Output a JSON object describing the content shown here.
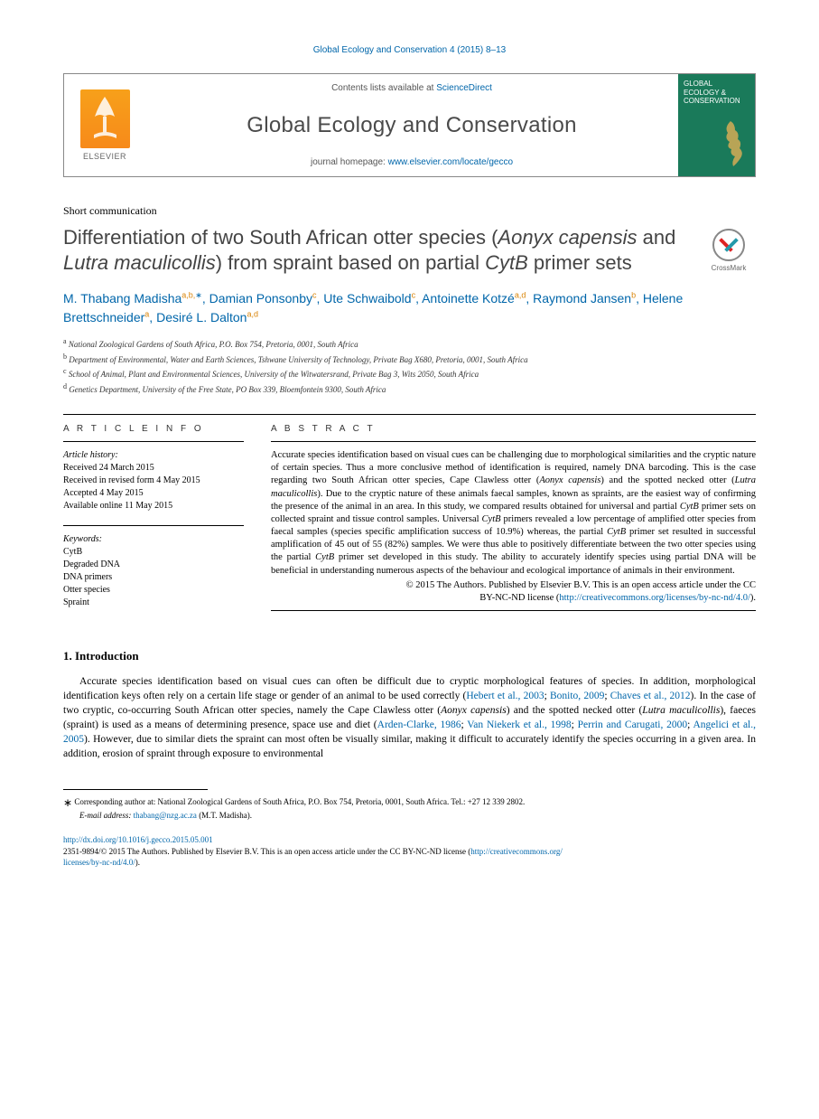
{
  "running_head": "Global Ecology and Conservation 4 (2015) 8–13",
  "masthead": {
    "contents_prefix": "Contents lists available at ",
    "contents_link": "ScienceDirect",
    "journal_name": "Global Ecology and Conservation",
    "homepage_prefix": "journal homepage: ",
    "homepage_link": "www.elsevier.com/locate/gecco",
    "elsevier_word": "ELSEVIER",
    "cover_title": "GLOBAL ECOLOGY & CONSERVATION"
  },
  "article_type": "Short communication",
  "title_parts": {
    "p1": "Differentiation of two South African otter species (",
    "i1": "Aonyx capensis",
    "p2": " and ",
    "i2": "Lutra maculicollis",
    "p3": ") from spraint based on partial ",
    "i3": "CytB",
    "p4": " primer sets"
  },
  "crossmark_label": "CrossMark",
  "authors": [
    {
      "name": "M. Thabang Madisha",
      "sup": "a,b,",
      "star": "∗"
    },
    {
      "name": "Damian Ponsonby",
      "sup": "c"
    },
    {
      "name": "Ute Schwaibold",
      "sup": "c"
    },
    {
      "name": "Antoinette Kotzé",
      "sup": "a,d"
    },
    {
      "name": "Raymond Jansen",
      "sup": "b"
    },
    {
      "name": "Helene Brettschneider",
      "sup": "a"
    },
    {
      "name": "Desiré L. Dalton",
      "sup": "a,d"
    }
  ],
  "affiliations": [
    {
      "key": "a",
      "text": "National Zoological Gardens of South Africa, P.O. Box 754, Pretoria, 0001, South Africa"
    },
    {
      "key": "b",
      "text": "Department of Environmental, Water and Earth Sciences, Tshwane University of Technology, Private Bag X680, Pretoria, 0001, South Africa"
    },
    {
      "key": "c",
      "text": "School of Animal, Plant and Environmental Sciences, University of the Witwatersrand, Private Bag 3, Wits 2050, South Africa"
    },
    {
      "key": "d",
      "text": "Genetics Department, University of the Free State, PO Box 339, Bloemfontein 9300, South Africa"
    }
  ],
  "info": {
    "heading": "A R T I C L E   I N F O",
    "history_label": "Article history:",
    "history": [
      "Received 24 March 2015",
      "Received in revised form 4 May 2015",
      "Accepted 4 May 2015",
      "Available online 11 May 2015"
    ],
    "keywords_label": "Keywords:",
    "keywords": [
      "CytB",
      "Degraded DNA",
      "DNA primers",
      "Otter species",
      "Spraint"
    ]
  },
  "abstract": {
    "heading": "A B S T R A C T",
    "text_parts": {
      "p1": "Accurate species identification based on visual cues can be challenging due to morphological similarities and the cryptic nature of certain species. Thus a more conclusive method of identification is required, namely DNA barcoding. This is the case regarding two South African otter species, Cape Clawless otter (",
      "i1": "Aonyx capensis",
      "p2": ") and the spotted necked otter (",
      "i2": "Lutra maculicollis",
      "p3": "). Due to the cryptic nature of these animals faecal samples, known as spraints, are the easiest way of confirming the presence of the animal in an area. In this study, we compared results obtained for universal and partial ",
      "i3": "CytB",
      "p4": " primer sets on collected spraint and tissue control samples. Universal ",
      "i4": "CytB",
      "p5": " primers revealed a low percentage of amplified otter species from faecal samples (species specific amplification success of 10.9%) whereas, the partial ",
      "i5": "CytB",
      "p6": " primer set resulted in successful amplification of 45 out of 55 (82%) samples. We were thus able to positively differentiate between the two otter species using the partial ",
      "i6": "CytB",
      "p7": " primer set developed in this study. The ability to accurately identify species using partial DNA will be beneficial in understanding numerous aspects of the behaviour and ecological importance of animals in their environment."
    },
    "copyright_line1": "© 2015 The Authors. Published by Elsevier B.V. This is an open access article under the CC",
    "copyright_line2_prefix": "BY-NC-ND license (",
    "copyright_link": "http://creativecommons.org/licenses/by-nc-nd/4.0/",
    "copyright_line2_suffix": ")."
  },
  "section1_heading": "1.  Introduction",
  "intro": {
    "p1": "Accurate species identification based on visual cues can often be difficult due to cryptic morphological features of species. In addition, morphological identification keys often rely on a certain life stage or gender of an animal to be used correctly (",
    "c1": "Hebert et al., 2003",
    "p2": "; ",
    "c2": "Bonito, 2009",
    "p3": "; ",
    "c3": "Chaves et al., 2012",
    "p4": "). In the case of two cryptic, co-occurring South African otter species, namely the Cape Clawless otter (",
    "i1": "Aonyx capensis",
    "p5": ") and the spotted necked otter (",
    "i2": "Lutra maculicollis",
    "p6": "), faeces (spraint) is used as a means of determining presence, space use and diet (",
    "c4": "Arden-Clarke, 1986",
    "p7": "; ",
    "c5": "Van Niekerk et al., 1998",
    "p8": "; ",
    "c6": "Perrin and Carugati, 2000",
    "p9": "; ",
    "c7": "Angelici et al., 2005",
    "p10": "). However, due to similar diets the spraint can most often be visually similar, making it difficult to accurately identify the species occurring in a given area. In addition, erosion of spraint through exposure to environmental"
  },
  "footnote": {
    "corr_label": "Corresponding author at: National Zoological Gardens of South Africa, P.O. Box 754, Pretoria, 0001, South Africa. Tel.: +27 12 339 2802.",
    "email_label": "E-mail address:",
    "email": "thabang@nzg.ac.za",
    "email_who": "(M.T. Madisha)."
  },
  "footer": {
    "doi": "http://dx.doi.org/10.1016/j.gecco.2015.05.001",
    "issn_line_prefix": "2351-9894/© 2015 The Authors. Published by Elsevier B.V. This is an open access article under the CC BY-NC-ND license (",
    "license_link1": "http://creativecommons.org/",
    "license_link2": "licenses/by-nc-nd/4.0/",
    "issn_line_suffix": ")."
  },
  "colors": {
    "link": "#0066aa",
    "affil_sup": "#d9850a",
    "elsevier_orange": "#f78a1a",
    "cover_green": "#1a7a5a"
  }
}
